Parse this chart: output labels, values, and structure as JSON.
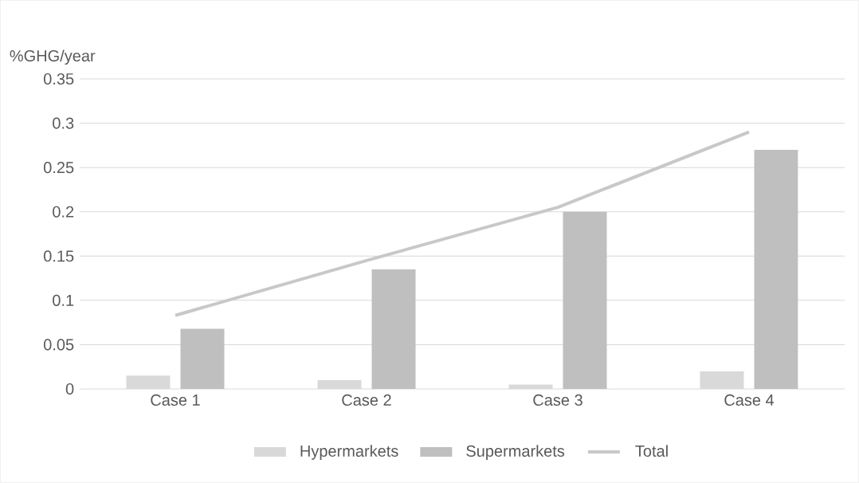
{
  "chart_data": {
    "type": "bar",
    "ylabel": "%GHG/year",
    "categories": [
      "Case 1",
      "Case 2",
      "Case 3",
      "Case 4"
    ],
    "series": [
      {
        "name": "Hypermarkets",
        "color": "#d9d9d9",
        "values": [
          0.015,
          0.01,
          0.005,
          0.02
        ]
      },
      {
        "name": "Supermarkets",
        "color": "#bfbfbf",
        "values": [
          0.068,
          0.135,
          0.2,
          0.27
        ]
      },
      {
        "name": "Total",
        "type": "line",
        "color": "#c8c8c8",
        "values": [
          0.083,
          0.145,
          0.205,
          0.29
        ]
      }
    ],
    "ylim": [
      0,
      0.35
    ],
    "yticks": [
      0,
      0.05,
      0.1,
      0.15,
      0.2,
      0.25,
      0.3,
      0.35
    ],
    "grid": "y",
    "legend": "bottom"
  }
}
